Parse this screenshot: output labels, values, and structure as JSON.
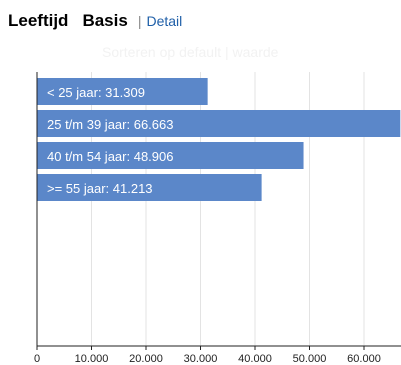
{
  "header": {
    "tab_leeftijd": "Leeftijd",
    "tab_basis": "Basis",
    "separator": "|",
    "tab_detail": "Detail"
  },
  "sort": {
    "prefix": "Sorteren op",
    "option_default": "default",
    "separator": "|",
    "option_waarde": "waarde"
  },
  "chart_data": {
    "type": "bar",
    "orientation": "horizontal",
    "categories": [
      "< 25 jaar",
      "25 t/m 39 jaar",
      "40 t/m 54 jaar",
      ">= 55 jaar"
    ],
    "values": [
      31309,
      66663,
      48906,
      41213
    ],
    "data_labels": [
      "< 25 jaar: 31.309",
      "25 t/m 39 jaar: 66.663",
      "40 t/m 54 jaar: 48.906",
      ">= 55 jaar: 41.213"
    ],
    "xlim": [
      0,
      65000
    ],
    "x_ticks": [
      0,
      10000,
      20000,
      30000,
      40000,
      50000,
      60000
    ],
    "x_tick_labels": [
      "0",
      "10.000",
      "20.000",
      "30.000",
      "40.000",
      "50.000",
      "60.000"
    ],
    "grid": true,
    "bar_color": "#5b87c9",
    "title": "",
    "xlabel": "",
    "ylabel": ""
  }
}
